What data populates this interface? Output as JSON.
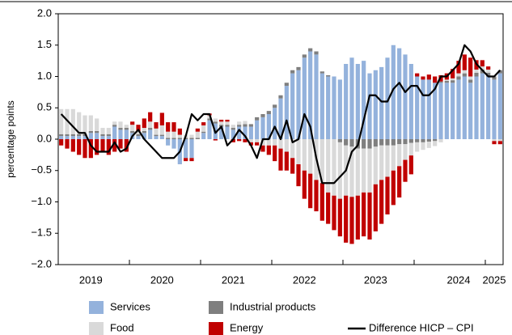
{
  "chart_data": {
    "type": "stacked-bar-line",
    "y_label": "percentage points",
    "categories": [
      null,
      null,
      null,
      null,
      null,
      "2019",
      null,
      null,
      null,
      null,
      null,
      null,
      null,
      null,
      null,
      null,
      null,
      "2020",
      null,
      null,
      null,
      null,
      null,
      null,
      null,
      null,
      null,
      null,
      null,
      "2021",
      null,
      null,
      null,
      null,
      null,
      null,
      null,
      null,
      null,
      null,
      null,
      "2022",
      null,
      null,
      null,
      null,
      null,
      null,
      null,
      null,
      null,
      null,
      null,
      "2023",
      null,
      null,
      null,
      null,
      null,
      null,
      null,
      null,
      null,
      null,
      null,
      null,
      null,
      "2024",
      null,
      null,
      null,
      null,
      null,
      "2025",
      null
    ],
    "ylim": [
      -2.0,
      2.0
    ],
    "yticks": [
      {
        "value": 2.0,
        "label": "2.0"
      },
      {
        "value": 1.5,
        "label": "1.5"
      },
      {
        "value": 1.0,
        "label": "1.0"
      },
      {
        "value": 0.5,
        "label": "0.5"
      },
      {
        "value": 0,
        "label": "0.0"
      },
      {
        "value": -0.5,
        "label": "−0.5"
      },
      {
        "value": -1.0,
        "label": "−1.0"
      },
      {
        "value": -1.5,
        "label": "−1.5"
      },
      {
        "value": -2.0,
        "label": "−2.0"
      }
    ],
    "series": [
      {
        "name": "Services",
        "type": "bar",
        "color": "#94b2dc",
        "values": [
          0.05,
          0.05,
          0.05,
          0.05,
          0.05,
          0.1,
          0.1,
          0.05,
          0.05,
          0.2,
          0.15,
          0.15,
          0.1,
          0.05,
          0.1,
          0.15,
          0.05,
          0.05,
          -0.1,
          -0.15,
          -0.4,
          -0.3,
          -0.3,
          0.0,
          0.1,
          0.3,
          0.25,
          0.2,
          0.2,
          0.15,
          0.2,
          0.2,
          0.2,
          0.3,
          0.35,
          0.4,
          0.5,
          0.65,
          0.85,
          1.05,
          1.1,
          1.3,
          1.4,
          1.35,
          1.05,
          1.0,
          1.0,
          0.95,
          1.2,
          1.3,
          1.2,
          1.25,
          1.05,
          1.1,
          1.15,
          1.3,
          1.5,
          1.45,
          1.35,
          1.2,
          1.0,
          0.95,
          0.95,
          0.9,
          0.9,
          0.9,
          0.9,
          0.95,
          1.0,
          0.9,
          1.0,
          1.05,
          1.0,
          0.95,
          1.05
        ]
      },
      {
        "name": "Industrial products",
        "type": "bar",
        "color": "#7f7f7f",
        "values": [
          0.03,
          0.03,
          0.03,
          0.03,
          0.03,
          0.03,
          0.03,
          0.03,
          0.03,
          0.03,
          0.03,
          0.03,
          0.03,
          0.03,
          0.03,
          0.03,
          0.02,
          0.02,
          0.02,
          0.02,
          0.02,
          0.02,
          0.02,
          0.02,
          0.02,
          0.03,
          0.03,
          0.03,
          0.03,
          0.03,
          0.03,
          0.04,
          0.04,
          0.05,
          0.05,
          0.05,
          0.05,
          0.05,
          0.05,
          0.05,
          0.05,
          0.05,
          0.05,
          0.05,
          0.03,
          0.02,
          0.0,
          -0.05,
          -0.1,
          -0.12,
          -0.15,
          -0.15,
          -0.15,
          -0.12,
          -0.1,
          -0.1,
          -0.1,
          -0.08,
          -0.08,
          -0.06,
          -0.05,
          -0.05,
          -0.04,
          -0.03,
          0.02,
          0.03,
          0.04,
          0.05,
          0.05,
          0.05,
          0.06,
          0.06,
          0.06,
          0.05,
          0.05
        ]
      },
      {
        "name": "Food",
        "type": "bar",
        "color": "#d9d9d9",
        "values": [
          0.4,
          0.4,
          0.4,
          0.35,
          0.3,
          0.25,
          0.2,
          0.1,
          0.1,
          0.05,
          0.1,
          0.05,
          0.1,
          0.05,
          0.05,
          0.1,
          0.1,
          0.15,
          0.1,
          0.1,
          0.05,
          0.05,
          0.05,
          0.1,
          0.1,
          0.05,
          0.05,
          0.05,
          0.05,
          0.05,
          0.05,
          0.05,
          -0.05,
          -0.05,
          -0.1,
          -0.1,
          -0.1,
          -0.15,
          -0.2,
          -0.3,
          -0.4,
          -0.5,
          -0.55,
          -0.65,
          -0.7,
          -0.85,
          -0.9,
          -0.9,
          -0.8,
          -0.8,
          -0.75,
          -0.7,
          -0.7,
          -0.6,
          -0.55,
          -0.5,
          -0.4,
          -0.35,
          -0.25,
          -0.2,
          -0.15,
          -0.12,
          -0.1,
          -0.08,
          -0.05,
          0.02,
          0.03,
          0.05,
          0.05,
          0.05,
          0.05,
          0.05,
          0.05,
          -0.03,
          -0.03
        ]
      },
      {
        "name": "Energy",
        "type": "bar",
        "color": "#c00000",
        "values": [
          -0.1,
          -0.15,
          -0.2,
          -0.25,
          -0.3,
          -0.3,
          -0.25,
          -0.2,
          -0.25,
          -0.2,
          -0.15,
          -0.2,
          0.05,
          0.1,
          0.15,
          0.15,
          0.1,
          0.2,
          0.15,
          0.15,
          0.1,
          -0.05,
          -0.05,
          0.05,
          0.05,
          0.03,
          -0.02,
          0.03,
          0.03,
          -0.05,
          -0.03,
          -0.05,
          -0.05,
          -0.05,
          -0.1,
          -0.15,
          -0.25,
          -0.35,
          -0.3,
          -0.25,
          -0.35,
          -0.45,
          -0.55,
          -0.5,
          -0.6,
          -0.5,
          -0.55,
          -0.6,
          -0.75,
          -0.75,
          -0.7,
          -0.7,
          -0.75,
          -0.75,
          -0.7,
          -0.6,
          -0.55,
          -0.5,
          -0.35,
          -0.3,
          0.05,
          0.05,
          0.08,
          0.1,
          0.1,
          0.1,
          0.15,
          0.2,
          0.25,
          0.3,
          0.15,
          0.1,
          0.05,
          -0.05,
          -0.05
        ]
      },
      {
        "name": "Difference HICP – CPI",
        "type": "line",
        "color": "#000000",
        "values": [
          0.4,
          0.3,
          0.2,
          0.1,
          0.1,
          -0.1,
          -0.2,
          -0.2,
          -0.2,
          -0.05,
          -0.2,
          -0.15,
          0.05,
          0.15,
          0.0,
          -0.1,
          -0.2,
          -0.3,
          -0.3,
          -0.3,
          -0.2,
          0.05,
          0.4,
          0.3,
          0.4,
          0.4,
          0.1,
          0.2,
          -0.1,
          0.0,
          0.15,
          0.05,
          -0.1,
          -0.3,
          0.0,
          0.0,
          0.2,
          0.0,
          0.3,
          -0.05,
          0.0,
          0.4,
          0.2,
          -0.3,
          -0.7,
          -0.7,
          -0.7,
          -0.6,
          -0.5,
          -0.2,
          -0.1,
          0.3,
          0.7,
          0.7,
          0.6,
          0.6,
          0.8,
          0.9,
          0.75,
          0.85,
          0.85,
          0.7,
          0.7,
          0.8,
          1.0,
          1.0,
          1.1,
          1.2,
          1.5,
          1.4,
          1.2,
          1.1,
          1.0,
          1.0,
          1.1
        ]
      }
    ]
  }
}
